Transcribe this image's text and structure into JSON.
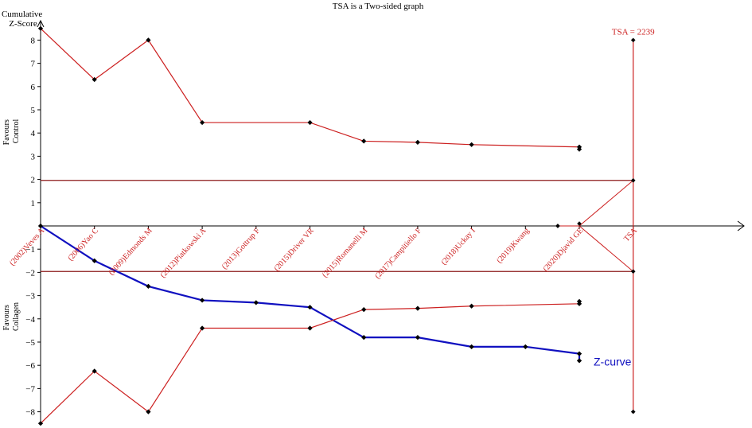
{
  "chart_data": {
    "type": "line",
    "title": "TSA is a Two-sided graph",
    "ylabel_lines": [
      "Cumulative",
      "Z-Score"
    ],
    "upper_region_label_lines": [
      "Favours",
      "Control"
    ],
    "lower_region_label_lines": [
      "Favours",
      "Collagen"
    ],
    "ylim": [
      -8.5,
      8.7
    ],
    "yticks": [
      8,
      7,
      6,
      5,
      4,
      3,
      2,
      1,
      -1,
      -2,
      -3,
      -4,
      -5,
      -6,
      -7,
      -8
    ],
    "x_labels": [
      "(2002)Veves A",
      "(2006)Yao C",
      "(2009)Edmonds M",
      "(2012)Piatkowski A",
      "(2013)Gottrup F",
      "(2015)Driver VR",
      "(2015)Romanelli M",
      "(2017)Campitiello F",
      "(2018)Uckay I",
      "(2019)Kwang",
      "(2020)Djavid GE",
      "TSA"
    ],
    "conventional_boundary": 1.96,
    "tsa_label": "TSA = 2239",
    "tsa_boundary_z": 8,
    "series": [
      {
        "name": "Z-curve",
        "color": "#1010c0",
        "x": [
          0,
          1,
          2,
          3,
          4,
          5,
          6,
          7,
          8,
          9,
          10,
          11
        ],
        "y": [
          0,
          -1.5,
          -2.6,
          -3.2,
          -3.3,
          -3.5,
          -4.8,
          -4.8,
          -5.2,
          -5.2,
          -5.5,
          -5.8
        ]
      },
      {
        "color": "#cc1f1f",
        "x": [
          0,
          1,
          2,
          3,
          5,
          6,
          7,
          8,
          10,
          11
        ],
        "y": [
          8.5,
          6.3,
          8.0,
          4.45,
          4.45,
          3.65,
          3.6,
          3.5,
          3.4,
          3.3
        ]
      },
      {
        "color": "#cc1f1f",
        "x": [
          0,
          1,
          2,
          3,
          5,
          6,
          7,
          8,
          10,
          11
        ],
        "y": [
          -8.5,
          -6.25,
          -8.0,
          -4.4,
          -4.4,
          -3.6,
          -3.55,
          -3.45,
          -3.35,
          -3.25
        ]
      }
    ],
    "colors": {
      "boundary": "#cc1f1f",
      "conventional": "#8b1a1a",
      "axis": "#000000",
      "label": "#cc1f1f"
    }
  }
}
